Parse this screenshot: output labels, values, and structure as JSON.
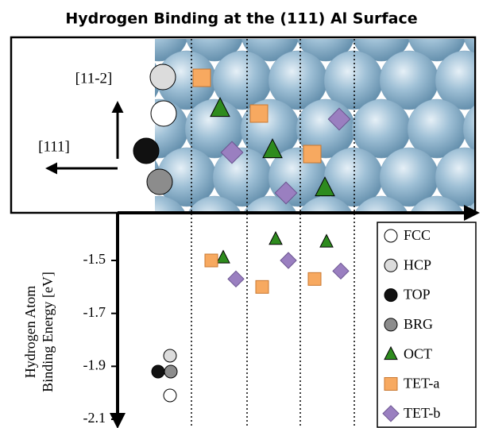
{
  "chart_data": {
    "type": "scatter",
    "title": "Hydrogen Binding at the (111) Al Surface",
    "annotations": [
      "[11-2]",
      "[111]"
    ],
    "y_label": [
      "Hydrogen Atom",
      "Binding Energy [eV]"
    ],
    "ylim": [
      -2.1,
      -1.32
    ],
    "yticks": [
      -1.5,
      -1.7,
      -1.9,
      -2.1
    ],
    "series": [
      {
        "name": "FCC",
        "color": "#ffffff",
        "marker": "circle",
        "values": [
          -2.01
        ]
      },
      {
        "name": "HCP",
        "color": "#dcdcdc",
        "marker": "circle",
        "values": [
          -1.86
        ]
      },
      {
        "name": "TOP",
        "color": "#111111",
        "marker": "circle",
        "values": [
          -1.92
        ]
      },
      {
        "name": "BRG",
        "color": "#8c8c8c",
        "marker": "circle",
        "values": [
          -1.92
        ]
      },
      {
        "name": "OCT",
        "color": "#2e8b1e",
        "marker": "triangle",
        "values": [
          -1.49,
          -1.42,
          -1.43
        ]
      },
      {
        "name": "TET-a",
        "color": "#f7a960",
        "marker": "square",
        "values": [
          -1.5,
          -1.6,
          -1.57
        ]
      },
      {
        "name": "TET-b",
        "color": "#9a7fc0",
        "marker": "diamond",
        "values": [
          -1.57,
          -1.5,
          -1.54
        ]
      }
    ]
  }
}
